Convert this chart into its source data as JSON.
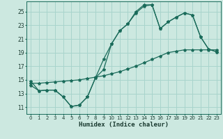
{
  "xlabel": "Humidex (Indice chaleur)",
  "background_color": "#cce8e0",
  "grid_color": "#a8d4cc",
  "line_color": "#1a6b5a",
  "xlim": [
    -0.5,
    23.5
  ],
  "ylim": [
    10.0,
    26.5
  ],
  "xticks": [
    0,
    1,
    2,
    3,
    4,
    5,
    6,
    7,
    8,
    9,
    10,
    11,
    12,
    13,
    14,
    15,
    16,
    17,
    18,
    19,
    20,
    21,
    22,
    23
  ],
  "yticks": [
    11,
    13,
    15,
    17,
    19,
    21,
    23,
    25
  ],
  "line1_x": [
    0,
    1,
    2,
    3,
    4,
    5,
    6,
    7,
    8,
    9,
    10,
    11,
    12,
    13,
    14,
    15,
    16,
    17,
    18,
    19,
    20,
    21,
    22,
    23
  ],
  "line1_y": [
    14.8,
    13.4,
    13.5,
    13.5,
    12.5,
    11.1,
    11.3,
    12.5,
    15.3,
    18.0,
    20.3,
    22.2,
    23.2,
    25.0,
    26.0,
    26.0,
    22.5,
    23.5,
    24.2,
    24.8,
    24.5,
    21.3,
    19.5,
    19.1
  ],
  "line2_x": [
    0,
    1,
    2,
    3,
    4,
    5,
    6,
    7,
    8,
    9,
    10,
    11,
    12,
    13,
    14,
    15,
    16,
    17,
    18,
    19,
    20,
    21,
    22,
    23
  ],
  "line2_y": [
    14.2,
    13.4,
    13.5,
    13.5,
    12.5,
    11.1,
    11.3,
    12.5,
    15.3,
    16.5,
    20.3,
    22.2,
    23.2,
    24.8,
    25.8,
    26.0,
    22.5,
    23.5,
    24.2,
    24.8,
    24.5,
    21.3,
    19.5,
    19.1
  ],
  "line3_x": [
    0,
    1,
    2,
    3,
    4,
    5,
    6,
    7,
    8,
    9,
    10,
    11,
    12,
    13,
    14,
    15,
    16,
    17,
    18,
    19,
    20,
    21,
    22,
    23
  ],
  "line3_y": [
    14.5,
    14.5,
    14.6,
    14.7,
    14.8,
    14.9,
    15.0,
    15.2,
    15.4,
    15.6,
    15.9,
    16.2,
    16.6,
    17.0,
    17.5,
    18.0,
    18.5,
    19.0,
    19.2,
    19.4,
    19.4,
    19.4,
    19.4,
    19.4
  ]
}
